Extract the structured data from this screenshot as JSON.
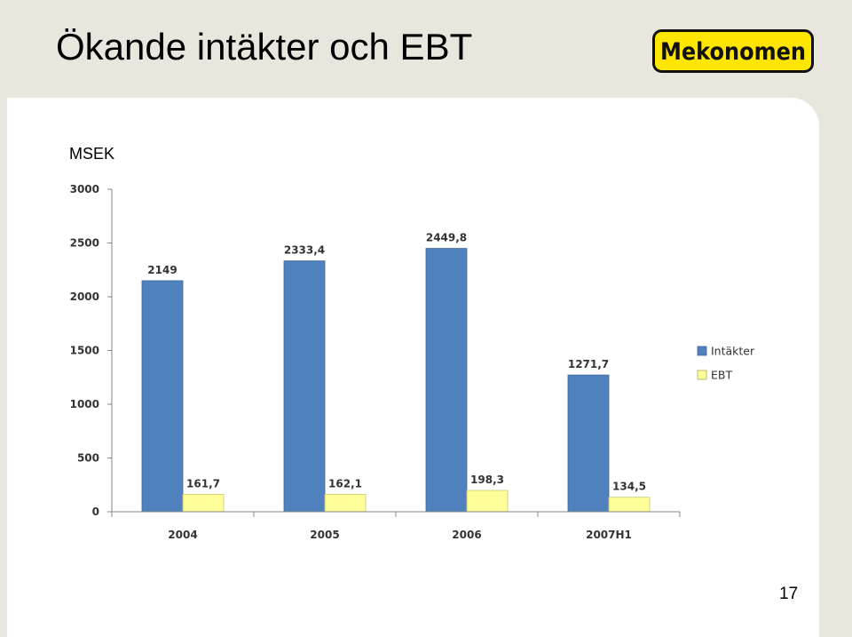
{
  "slide": {
    "title": "Ökande intäkter och EBT",
    "unit": "MSEK",
    "page_number": "17",
    "logo_text": "Mekonomen"
  },
  "colors": {
    "background": "#e9e7dd",
    "logo_yellow": "#ffe600",
    "series_intakter": "#4f81bd",
    "series_ebt": "#ffff99"
  },
  "chart_data": {
    "type": "bar",
    "categories": [
      "2004",
      "2005",
      "2006",
      "2007H1"
    ],
    "series": [
      {
        "name": "Intäkter",
        "values": [
          2149,
          2333.4,
          2449.8,
          1271.7
        ],
        "labels": [
          "2149",
          "2333,4",
          "2449,8",
          "1271,7"
        ],
        "color": "#4f81bd"
      },
      {
        "name": "EBT",
        "values": [
          161.7,
          162.1,
          198.3,
          134.5
        ],
        "labels": [
          "161,7",
          "162,1",
          "198,3",
          "134,5"
        ],
        "color": "#ffff99"
      }
    ],
    "ylim": [
      0,
      3000
    ],
    "yticks": [
      0,
      500,
      1000,
      1500,
      2000,
      2500,
      3000
    ],
    "ytick_labels": [
      "0",
      "500",
      "1000",
      "1500",
      "2000",
      "2500",
      "3000"
    ],
    "grid": false,
    "legend_position": "right"
  }
}
